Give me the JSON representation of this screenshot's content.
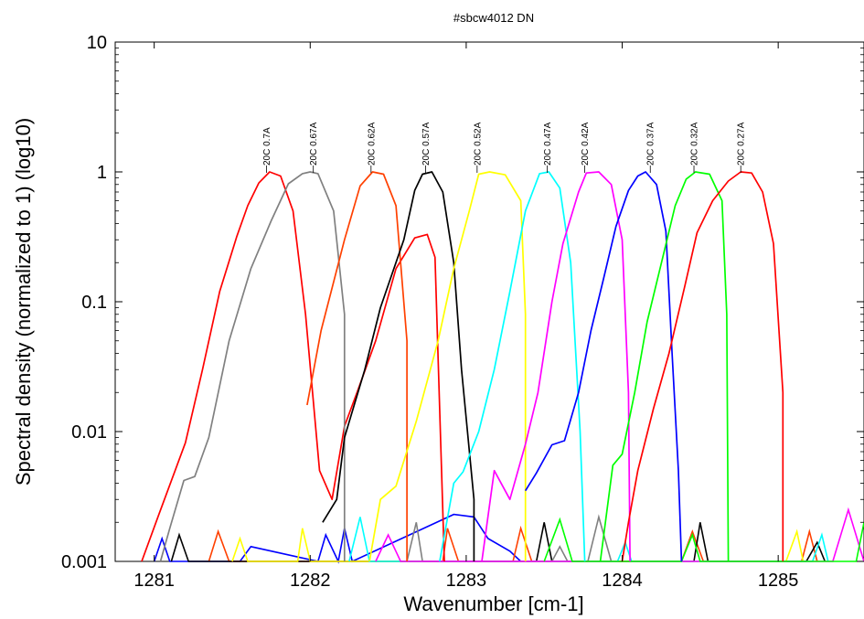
{
  "chart_data": {
    "type": "line",
    "title": "#sbcw4012 DN",
    "xlabel": "Wavenumber [cm-1]",
    "ylabel": "Spectral density (normalized to 1) (log10)",
    "x_scale": "linear",
    "y_scale": "log",
    "xlim": [
      1280.75,
      1285.55
    ],
    "ylim": [
      0.001,
      10
    ],
    "x_ticks": [
      1281,
      1282,
      1283,
      1284,
      1285
    ],
    "x_tick_labels": [
      "1281",
      "1282",
      "1283",
      "1284",
      "1285"
    ],
    "y_ticks": [
      0.001,
      0.01,
      0.1,
      1,
      10
    ],
    "y_tick_labels": [
      "0.001",
      "0.01",
      "0.1",
      "1",
      "10"
    ],
    "grid": false,
    "legend": "none",
    "series": [
      {
        "label": "20C 0.7A",
        "color": "#ff0000",
        "peak_x": 1281.72,
        "x": [
          1280.92,
          1281.03,
          1281.2,
          1281.31,
          1281.42,
          1281.53,
          1281.6,
          1281.67,
          1281.74,
          1281.81,
          1281.89,
          1281.97,
          1282.06,
          1282.14,
          1282.22,
          1282.3,
          1282.42,
          1282.55,
          1282.67,
          1282.75,
          1282.8,
          1282.86
        ],
        "y": [
          0.001,
          0.0023,
          0.0082,
          0.03,
          0.12,
          0.32,
          0.55,
          0.82,
          1.0,
          0.93,
          0.5,
          0.08,
          0.005,
          0.003,
          0.011,
          0.02,
          0.05,
          0.18,
          0.31,
          0.33,
          0.22,
          0.001
        ]
      },
      {
        "label": "20C 0.67A",
        "color": "#808080",
        "peak_x": 1282.02,
        "x": [
          1281.04,
          1281.1,
          1281.19,
          1281.26,
          1281.35,
          1281.48,
          1281.62,
          1281.75,
          1281.86,
          1281.95,
          1282.0,
          1282.05,
          1282.15,
          1282.22,
          1282.22
        ],
        "y": [
          0.001,
          0.0018,
          0.0042,
          0.0045,
          0.009,
          0.05,
          0.18,
          0.42,
          0.81,
          0.97,
          1.0,
          0.97,
          0.5,
          0.08,
          0.001
        ]
      },
      {
        "label": "20C 0.62A",
        "color": "#ff4000",
        "peak_x": 1282.39,
        "x": [
          1281.98,
          1282.07,
          1282.22,
          1282.32,
          1282.4,
          1282.47,
          1282.55,
          1282.62,
          1282.62
        ],
        "y": [
          0.016,
          0.06,
          0.3,
          0.78,
          1.0,
          0.96,
          0.55,
          0.05,
          0.001
        ]
      },
      {
        "label": "20C 0.57A",
        "color": "#000000",
        "peak_x": 1282.74,
        "x": [
          1282.08,
          1282.17,
          1282.22,
          1282.35,
          1282.45,
          1282.6,
          1282.67,
          1282.72,
          1282.78,
          1282.85,
          1282.92,
          1282.97,
          1283.05,
          1283.05
        ],
        "y": [
          0.002,
          0.003,
          0.009,
          0.03,
          0.09,
          0.3,
          0.72,
          0.96,
          1.0,
          0.7,
          0.2,
          0.03,
          0.003,
          0.001
        ]
      },
      {
        "label": "20C 0.52A",
        "color": "#ffff00",
        "peak_x": 1283.07,
        "x": [
          1282.38,
          1282.45,
          1282.55,
          1282.68,
          1282.82,
          1282.92,
          1283.02,
          1283.08,
          1283.15,
          1283.25,
          1283.35,
          1283.38,
          1283.38
        ],
        "y": [
          0.001,
          0.003,
          0.0038,
          0.012,
          0.05,
          0.18,
          0.5,
          0.96,
          1.0,
          0.95,
          0.6,
          0.08,
          0.001
        ]
      },
      {
        "label": "20C 0.47A",
        "color": "#00ffff",
        "peak_x": 1283.52,
        "x": [
          1282.83,
          1282.92,
          1282.98,
          1283.08,
          1283.18,
          1283.28,
          1283.38,
          1283.47,
          1283.53,
          1283.6,
          1283.67,
          1283.73,
          1283.76
        ],
        "y": [
          0.001,
          0.004,
          0.0049,
          0.01,
          0.03,
          0.12,
          0.5,
          0.97,
          1.0,
          0.75,
          0.2,
          0.01,
          0.001
        ]
      },
      {
        "label": "20C 0.42A",
        "color": "#ff00ff",
        "peak_x": 1283.76,
        "x": [
          1283.1,
          1283.18,
          1283.28,
          1283.38,
          1283.46,
          1283.55,
          1283.62,
          1283.72,
          1283.77,
          1283.85,
          1283.93,
          1284.0,
          1284.04,
          1284.05
        ],
        "y": [
          0.001,
          0.005,
          0.003,
          0.008,
          0.02,
          0.1,
          0.28,
          0.7,
          0.98,
          1.0,
          0.8,
          0.3,
          0.02,
          0.001
        ]
      },
      {
        "label": "20C 0.37A",
        "color": "#0000ff",
        "peak_x": 1284.18,
        "x": [
          1283.38,
          1283.45,
          1283.55,
          1283.63,
          1283.72,
          1283.8,
          1283.88,
          1283.96,
          1284.04,
          1284.1,
          1284.15,
          1284.22,
          1284.28,
          1284.32,
          1284.36,
          1284.38
        ],
        "y": [
          0.0035,
          0.0048,
          0.0079,
          0.0085,
          0.02,
          0.06,
          0.15,
          0.38,
          0.72,
          0.93,
          1.0,
          0.8,
          0.35,
          0.04,
          0.005,
          0.001
        ]
      },
      {
        "label": "20C 0.32A",
        "color": "#00ff00",
        "peak_x": 1284.46,
        "x": [
          1283.86,
          1283.94,
          1284.0,
          1284.08,
          1284.16,
          1284.26,
          1284.34,
          1284.41,
          1284.47,
          1284.56,
          1284.64,
          1284.67,
          1284.68
        ],
        "y": [
          0.001,
          0.0055,
          0.0067,
          0.02,
          0.07,
          0.22,
          0.55,
          0.88,
          1.0,
          0.96,
          0.6,
          0.08,
          0.001
        ]
      },
      {
        "label": "20C 0.27A",
        "color": "#ff0000",
        "peak_x": 1284.76,
        "x": [
          1284.0,
          1284.04,
          1284.1,
          1284.2,
          1284.3,
          1284.4,
          1284.48,
          1284.58,
          1284.68,
          1284.76,
          1284.83,
          1284.9,
          1284.97,
          1285.03,
          1285.03
        ],
        "y": [
          0.001,
          0.002,
          0.005,
          0.015,
          0.04,
          0.13,
          0.34,
          0.6,
          0.85,
          1.0,
          0.98,
          0.7,
          0.28,
          0.02,
          0.001
        ]
      }
    ],
    "noise_segments": [
      {
        "color": "#0000ff",
        "x": [
          1281.0,
          1281.05,
          1281.1,
          1281.55,
          1281.62,
          1282.05,
          1282.1,
          1282.18,
          1282.22,
          1282.27,
          1282.92,
          1283.05,
          1283.14,
          1283.28,
          1283.35
        ],
        "y": [
          0.001,
          0.0015,
          0.001,
          0.001,
          0.0013,
          0.001,
          0.0016,
          0.001,
          0.0018,
          0.001,
          0.0023,
          0.0022,
          0.0015,
          0.0012,
          0.001
        ]
      },
      {
        "color": "#ff4000",
        "x": [
          1281.35,
          1281.41,
          1281.48,
          1282.85,
          1282.88,
          1282.95,
          1283.3,
          1283.35,
          1283.42,
          1284.38,
          1284.45,
          1284.52,
          1285.15,
          1285.2,
          1285.25
        ],
        "y": [
          0.001,
          0.0017,
          0.001,
          0.001,
          0.0018,
          0.001,
          0.001,
          0.0018,
          0.001,
          0.001,
          0.0017,
          0.001,
          0.001,
          0.0017,
          0.001
        ]
      },
      {
        "color": "#000000",
        "x": [
          1281.11,
          1281.16,
          1281.22,
          1283.45,
          1283.5,
          1283.55,
          1284.46,
          1284.5,
          1284.55,
          1285.18,
          1285.25,
          1285.3
        ],
        "y": [
          0.001,
          0.0016,
          0.001,
          0.001,
          0.002,
          0.001,
          0.001,
          0.002,
          0.001,
          0.001,
          0.0014,
          0.001
        ]
      },
      {
        "color": "#ffff00",
        "x": [
          1281.5,
          1281.55,
          1281.6,
          1281.92,
          1281.95,
          1282.0,
          1285.05,
          1285.12,
          1285.16
        ],
        "y": [
          0.001,
          0.0015,
          0.001,
          0.001,
          0.0018,
          0.001,
          0.001,
          0.0017,
          0.001
        ]
      },
      {
        "color": "#00ffff",
        "x": [
          1282.25,
          1282.32,
          1282.38,
          1283.97,
          1284.02,
          1284.06,
          1285.22,
          1285.28,
          1285.32
        ],
        "y": [
          0.001,
          0.0022,
          0.001,
          0.001,
          0.0014,
          0.001,
          0.001,
          0.0016,
          0.001
        ]
      },
      {
        "color": "#808080",
        "x": [
          1282.62,
          1282.68,
          1282.72,
          1283.55,
          1283.6,
          1283.65,
          1283.78,
          1283.85,
          1283.93
        ],
        "y": [
          0.001,
          0.002,
          0.001,
          0.001,
          0.0013,
          0.001,
          0.001,
          0.0022,
          0.001
        ]
      },
      {
        "color": "#ff00ff",
        "x": [
          1282.42,
          1282.5,
          1282.58,
          1285.35,
          1285.45,
          1285.55
        ],
        "y": [
          0.001,
          0.0016,
          0.001,
          0.001,
          0.0025,
          0.001
        ]
      },
      {
        "color": "#00ff00",
        "x": [
          1283.5,
          1283.6,
          1283.68,
          1284.38,
          1284.45,
          1284.5,
          1285.5,
          1285.55
        ],
        "y": [
          0.001,
          0.0021,
          0.001,
          0.001,
          0.0016,
          0.001,
          0.001,
          0.002
        ]
      }
    ]
  }
}
